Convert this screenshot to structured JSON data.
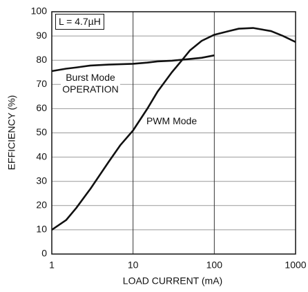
{
  "chart_data": {
    "type": "line",
    "x_label": "LOAD CURRENT (mA)",
    "y_label": "EFFICIENCY (%)",
    "annotations": [
      "L = 4.7µH"
    ],
    "series": [
      {
        "name": "PWM Mode",
        "color": "#111111",
        "x": [
          1,
          1.5,
          2,
          3,
          5,
          7,
          10,
          15,
          20,
          30,
          40,
          50,
          70,
          100,
          150,
          200,
          300,
          500,
          700,
          1000
        ],
        "values": [
          10,
          14,
          19,
          27,
          38,
          45,
          51,
          60,
          67,
          75,
          80,
          84,
          88,
          90.5,
          92,
          93,
          93.3,
          92,
          90,
          87.5
        ]
      },
      {
        "name": "Burst Mode OPERATION",
        "color": "#111111",
        "x": [
          1,
          1.5,
          2,
          3,
          5,
          10,
          15,
          20,
          30,
          50,
          70,
          100
        ],
        "values": [
          75.5,
          76.5,
          77,
          77.8,
          78.2,
          78.5,
          79,
          79.5,
          79.8,
          80.5,
          81,
          82
        ]
      }
    ],
    "xlim": [
      1,
      1000
    ],
    "xticks": [
      1,
      10,
      100,
      1000
    ],
    "log_x": true,
    "ylim": [
      0,
      100
    ],
    "yticks": [
      0,
      10,
      20,
      30,
      40,
      50,
      60,
      70,
      80,
      90,
      100
    ],
    "grid": true
  }
}
